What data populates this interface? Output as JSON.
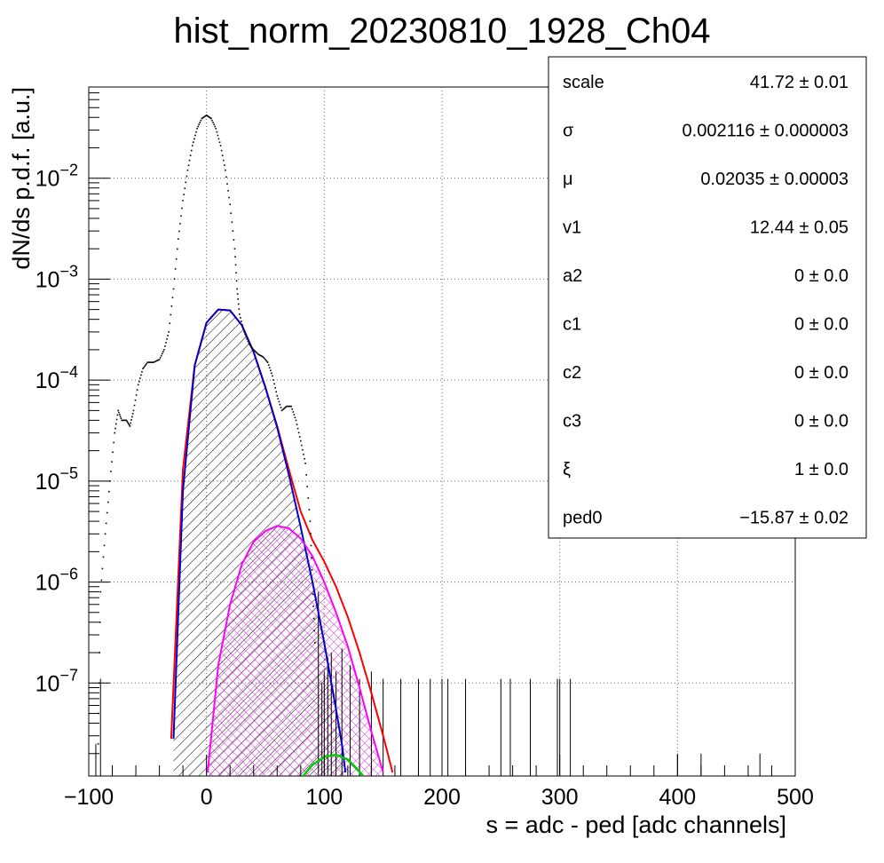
{
  "chart_data": {
    "type": "line",
    "title": "hist_norm_20230810_1928_Ch04",
    "xlabel": "s = adc - ped [adc channels]",
    "ylabel": "dN/ds p.d.f. [a.u.]",
    "x_range": [
      -100,
      500
    ],
    "y_range": [
      1.2e-08,
      0.08
    ],
    "y_scale": "log",
    "grid": true,
    "x_ticks": [
      {
        "value": -100,
        "label": "−100"
      },
      {
        "value": 0,
        "label": "0"
      },
      {
        "value": 100,
        "label": "100"
      },
      {
        "value": 200,
        "label": "200"
      },
      {
        "value": 300,
        "label": "300"
      },
      {
        "value": 400,
        "label": "400"
      },
      {
        "value": 500,
        "label": "500"
      }
    ],
    "y_ticks": [
      {
        "value": 1e-07,
        "label": "10",
        "exp": "−7"
      },
      {
        "value": 1e-06,
        "label": "10",
        "exp": "−6"
      },
      {
        "value": 1e-05,
        "label": "10",
        "exp": "−5"
      },
      {
        "value": 0.0001,
        "label": "10",
        "exp": "−4"
      },
      {
        "value": 0.001,
        "label": "10",
        "exp": "−3"
      },
      {
        "value": 0.01,
        "label": "10",
        "exp": "−2"
      }
    ],
    "series": [
      {
        "kind": "histogram points",
        "color": "#000000",
        "points": [
          [
            -92,
            2.5e-08
          ],
          [
            -90,
            8e-07
          ],
          [
            -86,
            3e-06
          ],
          [
            -82,
            1e-05
          ],
          [
            -78,
            3e-05
          ],
          [
            -75,
            5e-05
          ],
          [
            -72,
            4e-05
          ],
          [
            -68,
            4e-05
          ],
          [
            -65,
            3.5e-05
          ],
          [
            -62,
            5e-05
          ],
          [
            -58,
            9e-05
          ],
          [
            -54,
            0.00013
          ],
          [
            -50,
            0.00015
          ],
          [
            -45,
            0.00015
          ],
          [
            -40,
            0.00016
          ],
          [
            -36,
            0.0002
          ],
          [
            -32,
            0.0003
          ],
          [
            -28,
            0.0008
          ],
          [
            -24,
            0.0025
          ],
          [
            -20,
            0.006
          ],
          [
            -16,
            0.012
          ],
          [
            -12,
            0.021
          ],
          [
            -8,
            0.031
          ],
          [
            -4,
            0.039
          ],
          [
            0,
            0.042
          ],
          [
            4,
            0.039
          ],
          [
            8,
            0.031
          ],
          [
            12,
            0.021
          ],
          [
            16,
            0.012
          ],
          [
            20,
            0.0055
          ],
          [
            24,
            0.002
          ],
          [
            26,
            0.0008
          ],
          [
            28,
            0.00045
          ],
          [
            32,
            0.0003
          ],
          [
            36,
            0.00023
          ],
          [
            40,
            0.0002
          ],
          [
            44,
            0.00018
          ],
          [
            48,
            0.00017
          ],
          [
            52,
            0.00015
          ],
          [
            56,
            0.00011
          ],
          [
            60,
            7e-05
          ],
          [
            64,
            5e-05
          ],
          [
            68,
            5.5e-05
          ],
          [
            72,
            5.5e-05
          ],
          [
            76,
            4e-05
          ],
          [
            80,
            2.5e-05
          ],
          [
            84,
            1.5e-05
          ],
          [
            88,
            4e-06
          ],
          [
            90,
            1e-06
          ],
          [
            92,
            2.5e-07
          ]
        ]
      },
      {
        "kind": "fit total",
        "color": "#ff0000",
        "points": [
          [
            -30,
            2.8e-08
          ],
          [
            -20,
            1.3e-05
          ],
          [
            -10,
            0.00014
          ],
          [
            0,
            0.00037
          ],
          [
            10,
            0.0005
          ],
          [
            20,
            0.00049
          ],
          [
            30,
            0.00035
          ],
          [
            40,
            0.00019
          ],
          [
            50,
            8.5e-05
          ],
          [
            60,
            3.5e-05
          ],
          [
            70,
            1.3e-05
          ],
          [
            80,
            5e-06
          ],
          [
            90,
            2.6e-06
          ],
          [
            100,
            1.6e-06
          ],
          [
            110,
            9e-07
          ],
          [
            120,
            4.5e-07
          ],
          [
            130,
            2e-07
          ],
          [
            140,
            8e-08
          ],
          [
            150,
            3e-08
          ],
          [
            158,
            1.3e-08
          ]
        ]
      },
      {
        "kind": "component 1 (hatched)",
        "color": "#0000cc",
        "points": [
          [
            -28,
            2.8e-08
          ],
          [
            -20,
            8e-06
          ],
          [
            -10,
            0.00014
          ],
          [
            0,
            0.00037
          ],
          [
            10,
            0.0005
          ],
          [
            20,
            0.00049
          ],
          [
            30,
            0.00035
          ],
          [
            40,
            0.00019
          ],
          [
            50,
            8.5e-05
          ],
          [
            60,
            3.4e-05
          ],
          [
            70,
            1.15e-05
          ],
          [
            80,
            3.5e-06
          ],
          [
            90,
            1e-06
          ],
          [
            100,
            2.5e-07
          ],
          [
            110,
            5.5e-08
          ],
          [
            115,
            2.5e-08
          ],
          [
            118,
            1.3e-08
          ]
        ]
      },
      {
        "kind": "component 2 (cross-hatched)",
        "color": "#ff00ff",
        "points": [
          [
            1,
            1.3e-08
          ],
          [
            10,
            1.5e-07
          ],
          [
            20,
            6e-07
          ],
          [
            30,
            1.5e-06
          ],
          [
            40,
            2.5e-06
          ],
          [
            50,
            3.2e-06
          ],
          [
            60,
            3.6e-06
          ],
          [
            70,
            3.4e-06
          ],
          [
            80,
            2.7e-06
          ],
          [
            90,
            1.8e-06
          ],
          [
            100,
            1e-06
          ],
          [
            110,
            5e-07
          ],
          [
            120,
            2.3e-07
          ],
          [
            130,
            9e-08
          ],
          [
            140,
            3.3e-08
          ],
          [
            150,
            1.3e-08
          ]
        ]
      },
      {
        "kind": "component 3",
        "color": "#00cc00",
        "points": [
          [
            82,
            1.2e-08
          ],
          [
            90,
            1.55e-08
          ],
          [
            100,
            1.85e-08
          ],
          [
            110,
            1.95e-08
          ],
          [
            120,
            1.75e-08
          ],
          [
            128,
            1.4e-08
          ],
          [
            133,
            1.2e-08
          ]
        ]
      }
    ],
    "noise_spikes": [
      [
        95,
        8e-07
      ],
      [
        98,
        1e-07
      ],
      [
        100,
        1.3e-07
      ],
      [
        103,
        1.8e-07
      ],
      [
        106,
        2e-07
      ],
      [
        110,
        1.3e-07
      ],
      [
        115,
        2.2e-07
      ],
      [
        122,
        1.5e-07
      ],
      [
        130,
        1.1e-07
      ],
      [
        140,
        1.3e-07
      ],
      [
        150,
        1.1e-07
      ],
      [
        165,
        1.1e-07
      ],
      [
        180,
        1.1e-07
      ],
      [
        190,
        1.1e-07
      ],
      [
        200,
        1.1e-07
      ],
      [
        205,
        1.1e-07
      ],
      [
        220,
        1.1e-07
      ],
      [
        250,
        1.1e-07
      ],
      [
        258,
        1.1e-07
      ],
      [
        275,
        1.1e-07
      ],
      [
        298,
        1.1e-07
      ],
      [
        300,
        1.1e-07
      ],
      [
        309,
        1.1e-07
      ],
      [
        400,
        2e-08
      ],
      [
        420,
        2e-08
      ],
      [
        470,
        2e-08
      ],
      [
        -90,
        1.1e-07
      ],
      [
        -94,
        2.5e-08
      ]
    ],
    "stats_box": [
      {
        "name": "scale",
        "value": "41.72",
        "err": "± 0.01"
      },
      {
        "name": "σ",
        "value": "0.002116",
        "err": "± 0.000003"
      },
      {
        "name": "μ",
        "value": "0.02035",
        "err": "± 0.00003"
      },
      {
        "name": "v1",
        "value": "12.44",
        "err": "± 0.05"
      },
      {
        "name": "a2",
        "value": "0",
        "err": "± 0.0"
      },
      {
        "name": "c1",
        "value": "0",
        "err": "± 0.0"
      },
      {
        "name": "c2",
        "value": "0",
        "err": "± 0.0"
      },
      {
        "name": "c3",
        "value": "0",
        "err": "± 0.0"
      },
      {
        "name": "ξ",
        "value": "1",
        "err": "± 0.0"
      },
      {
        "name": "ped0",
        "value": "−15.87",
        "err": "± 0.02"
      }
    ]
  }
}
